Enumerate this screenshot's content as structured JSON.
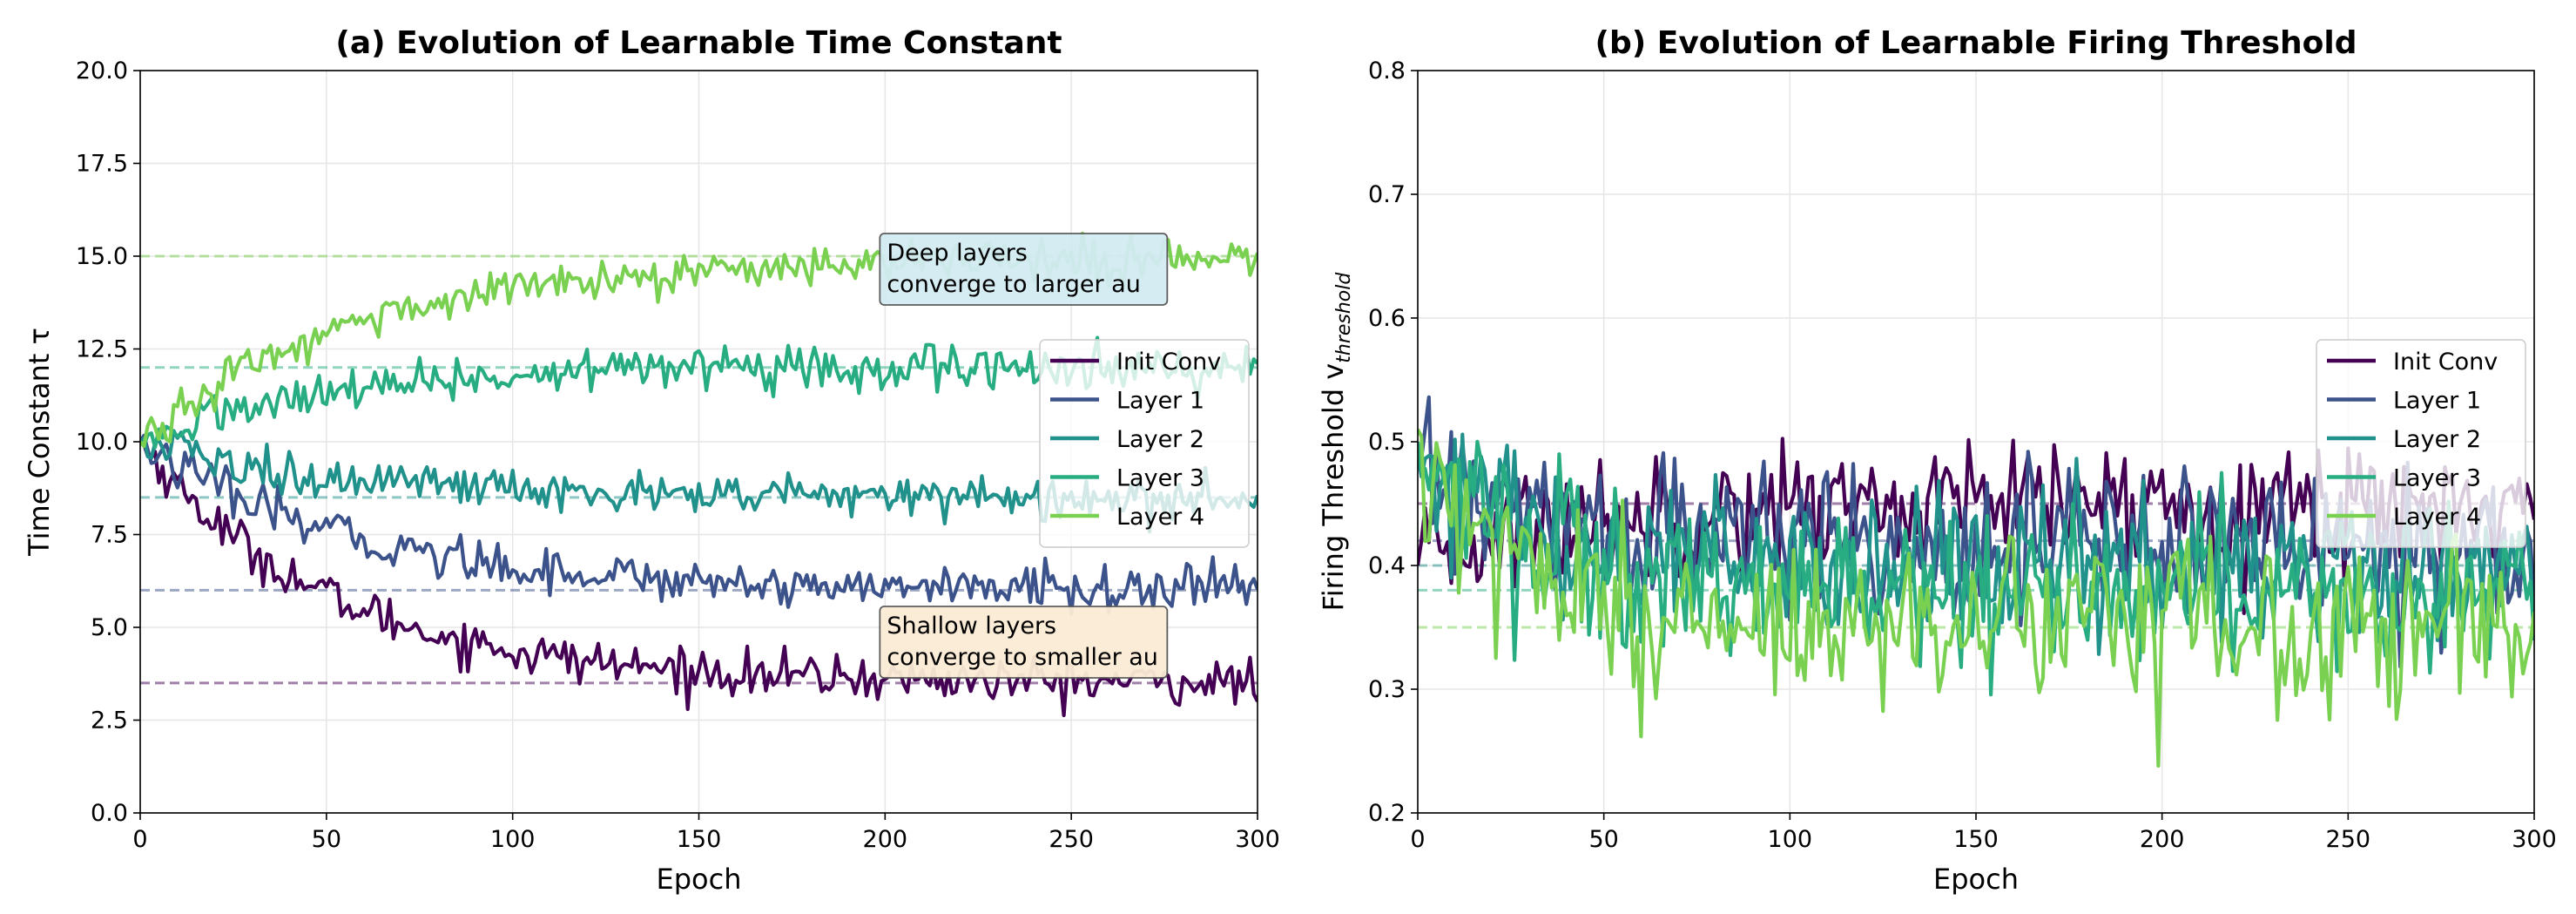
{
  "chart_data": [
    {
      "type": "line",
      "title": "(a) Evolution of Learnable Time Constant",
      "xlabel": "Epoch",
      "ylabel": "Time Constant τ",
      "xlim": [
        0,
        300
      ],
      "ylim": [
        0,
        20
      ],
      "xticks": [
        0,
        50,
        100,
        150,
        200,
        250,
        300
      ],
      "yticks": [
        0.0,
        2.5,
        5.0,
        7.5,
        10.0,
        12.5,
        15.0,
        17.5,
        20.0
      ],
      "ytick_labels": [
        "0.0",
        "2.5",
        "5.0",
        "7.5",
        "10.0",
        "12.5",
        "15.0",
        "17.5",
        "20.0"
      ],
      "grid": true,
      "legend": "center-right",
      "series": [
        {
          "name": "Init Conv",
          "color": "#440154",
          "start": 10.0,
          "target": 3.5,
          "rate": 0.02,
          "noise": 0.3,
          "x": [
            0,
            25,
            50,
            75,
            100,
            150,
            200,
            250,
            300
          ],
          "values": [
            10.0,
            6.4,
            4.9,
            4.1,
            3.8,
            3.6,
            3.5,
            3.4,
            3.6
          ]
        },
        {
          "name": "Layer 1",
          "color": "#3b528b",
          "start": 10.0,
          "target": 6.0,
          "rate": 0.018,
          "noise": 0.3,
          "x": [
            0,
            25,
            50,
            75,
            100,
            150,
            200,
            250,
            300
          ],
          "values": [
            10.0,
            7.8,
            6.9,
            6.4,
            6.2,
            6.1,
            6.0,
            6.0,
            6.1
          ]
        },
        {
          "name": "Layer 2",
          "color": "#21918c",
          "start": 10.0,
          "target": 8.5,
          "rate": 0.02,
          "noise": 0.3,
          "x": [
            0,
            25,
            50,
            75,
            100,
            150,
            200,
            250,
            300
          ],
          "values": [
            10.0,
            9.2,
            8.8,
            8.6,
            8.6,
            8.5,
            8.5,
            8.5,
            8.5
          ]
        },
        {
          "name": "Layer 3",
          "color": "#27ad81",
          "start": 10.0,
          "target": 12.0,
          "rate": 0.022,
          "noise": 0.3,
          "x": [
            0,
            25,
            50,
            75,
            100,
            150,
            200,
            250,
            300
          ],
          "values": [
            10.0,
            11.1,
            11.6,
            11.8,
            11.9,
            12.0,
            12.0,
            12.0,
            12.2
          ]
        },
        {
          "name": "Layer 4",
          "color": "#7ad151",
          "start": 10.0,
          "target": 15.0,
          "rate": 0.018,
          "noise": 0.3,
          "x": [
            0,
            25,
            50,
            75,
            100,
            150,
            200,
            250,
            300
          ],
          "values": [
            10.0,
            12.2,
            13.5,
            14.2,
            14.5,
            14.8,
            14.9,
            15.0,
            15.2
          ]
        }
      ],
      "reference_lines": [
        {
          "y": 3.5,
          "color": "#440154"
        },
        {
          "y": 6.0,
          "color": "#3b528b"
        },
        {
          "y": 8.5,
          "color": "#21918c"
        },
        {
          "y": 12.0,
          "color": "#27ad81"
        },
        {
          "y": 15.0,
          "color": "#7ad151"
        }
      ],
      "annotations": [
        {
          "lines": [
            "Deep layers",
            "converge to larger au"
          ],
          "x": 200,
          "y": 15.0,
          "box_color": "#d2ebf2",
          "border_color": "#555555"
        },
        {
          "lines": [
            "Shallow layers",
            "converge to smaller au"
          ],
          "x": 200,
          "y": 5.0,
          "box_color": "#fbecd5",
          "border_color": "#555555"
        }
      ]
    },
    {
      "type": "line",
      "title": "(b) Evolution of Learnable Firing Threshold",
      "xlabel": "Epoch",
      "ylabel": "Firing Threshold v",
      "ylabel_sub": "threshold",
      "xlim": [
        0,
        300
      ],
      "ylim": [
        0.2,
        0.8
      ],
      "xticks": [
        0,
        50,
        100,
        150,
        200,
        250,
        300
      ],
      "yticks": [
        0.2,
        0.3,
        0.4,
        0.5,
        0.6,
        0.7,
        0.8
      ],
      "ytick_labels": [
        "0.2",
        "0.3",
        "0.4",
        "0.5",
        "0.6",
        "0.7",
        "0.8"
      ],
      "grid": true,
      "legend": "center-right",
      "series": [
        {
          "name": "Init Conv",
          "color": "#440154",
          "start": 0.4,
          "target": 0.45,
          "rate": 0.03,
          "noise": 0.025,
          "x": [
            0,
            25,
            50,
            100,
            150,
            200,
            250,
            300
          ],
          "values": [
            0.4,
            0.43,
            0.44,
            0.45,
            0.45,
            0.45,
            0.45,
            0.45
          ]
        },
        {
          "name": "Layer 1",
          "color": "#3b528b",
          "start": 0.48,
          "target": 0.42,
          "rate": 0.04,
          "noise": 0.03,
          "x": [
            0,
            25,
            50,
            100,
            150,
            200,
            250,
            300
          ],
          "values": [
            0.48,
            0.44,
            0.43,
            0.42,
            0.42,
            0.42,
            0.42,
            0.42
          ]
        },
        {
          "name": "Layer 2",
          "color": "#21918c",
          "start": 0.49,
          "target": 0.4,
          "rate": 0.04,
          "noise": 0.03,
          "x": [
            0,
            25,
            50,
            100,
            150,
            200,
            250,
            300
          ],
          "values": [
            0.49,
            0.43,
            0.41,
            0.4,
            0.4,
            0.4,
            0.4,
            0.4
          ]
        },
        {
          "name": "Layer 3",
          "color": "#27ad81",
          "start": 0.5,
          "target": 0.38,
          "rate": 0.04,
          "noise": 0.03,
          "x": [
            0,
            25,
            50,
            100,
            150,
            200,
            250,
            300
          ],
          "values": [
            0.5,
            0.42,
            0.39,
            0.38,
            0.38,
            0.38,
            0.38,
            0.38
          ]
        },
        {
          "name": "Layer 4",
          "color": "#7ad151",
          "start": 0.51,
          "target": 0.35,
          "rate": 0.035,
          "noise": 0.035,
          "x": [
            0,
            25,
            50,
            100,
            150,
            200,
            250,
            300
          ],
          "values": [
            0.51,
            0.42,
            0.38,
            0.36,
            0.35,
            0.35,
            0.35,
            0.35
          ]
        }
      ],
      "reference_lines": [
        {
          "y": 0.45,
          "color": "#440154"
        },
        {
          "y": 0.42,
          "color": "#3b528b"
        },
        {
          "y": 0.4,
          "color": "#21918c"
        },
        {
          "y": 0.38,
          "color": "#27ad81"
        },
        {
          "y": 0.35,
          "color": "#7ad151"
        }
      ],
      "annotations": []
    }
  ]
}
